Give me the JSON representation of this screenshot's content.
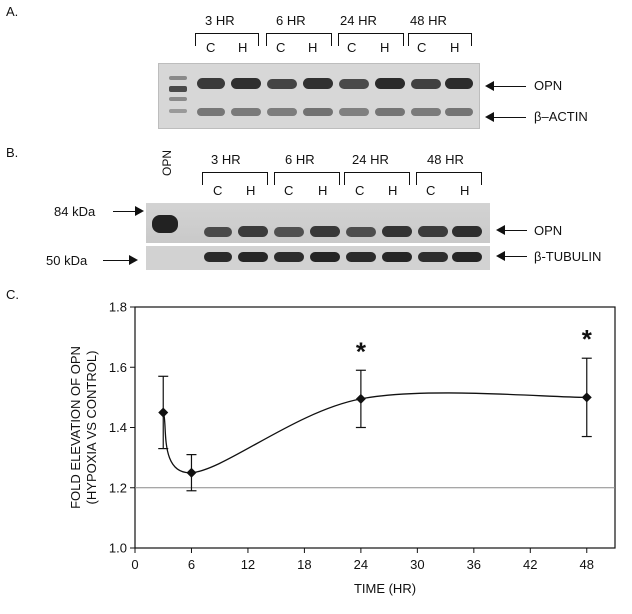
{
  "panel_a": {
    "letter": "A.",
    "groups": [
      "3 HR",
      "6 HR",
      "24 HR",
      "48 HR"
    ],
    "lanes": [
      "C",
      "H",
      "C",
      "H",
      "C",
      "H",
      "C",
      "H"
    ],
    "bands": [
      "OPN",
      "β–ACTIN"
    ]
  },
  "panel_b": {
    "letter": "B.",
    "std_label": "OPN",
    "groups": [
      "3 HR",
      "6 HR",
      "24 HR",
      "48 HR"
    ],
    "lanes": [
      "C",
      "H",
      "C",
      "H",
      "C",
      "H",
      "C",
      "H"
    ],
    "markers": [
      "84 kDa",
      "50 kDa"
    ],
    "bands": [
      "OPN",
      "β-TUBULIN"
    ]
  },
  "panel_c": {
    "letter": "C."
  },
  "chart_data": {
    "type": "line",
    "x": [
      3,
      6,
      24,
      48
    ],
    "y": [
      1.45,
      1.25,
      1.495,
      1.5
    ],
    "error": [
      0.12,
      0.06,
      0.095,
      0.13
    ],
    "significant": [
      false,
      false,
      true,
      true
    ],
    "significance_mark": "*",
    "xlabel": "TIME (HR)",
    "ylabel_lines": [
      "FOLD ELEVATION  OF OPN",
      "(HYPOXIA VS CONTROL)"
    ],
    "xlim": [
      0,
      51
    ],
    "ylim": [
      1.0,
      1.8
    ],
    "xticks": [
      "0",
      "6",
      "12",
      "18",
      "24",
      "30",
      "36",
      "42",
      "48"
    ],
    "yticks": [
      "1.0",
      "1.2",
      "1.4",
      "1.6",
      "1.8"
    ],
    "reference_line": 1.2
  }
}
